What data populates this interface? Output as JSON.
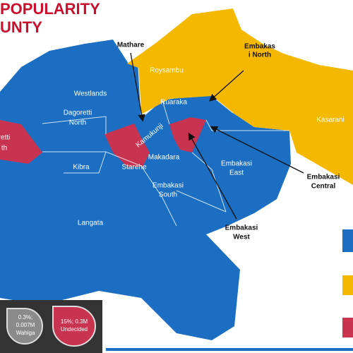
{
  "title_lines": [
    "POPULARITY",
    "UNTY"
  ],
  "regions": {
    "mathare": [
      "Mathare"
    ],
    "embakasi_north": [
      "Embakas",
      "i North"
    ],
    "roysambu": [
      "Roysambu"
    ],
    "westlands": [
      "Westlands"
    ],
    "ruaraka": [
      "Ruaraka"
    ],
    "kasarani": [
      "Kasarani"
    ],
    "dagoretti_north": [
      "Dagoretti",
      "North"
    ],
    "dagoretti_south": [
      "retti",
      "th"
    ],
    "kamukunji": [
      "Kamukunji"
    ],
    "makadara": [
      "Makadara"
    ],
    "starehe": [
      "Starehe"
    ],
    "kibra": [
      "Kibra"
    ],
    "embakasi_east": [
      "Embakasi",
      "East"
    ],
    "embakasi_central": [
      "Embakasi",
      "Central"
    ],
    "embakasi_south": [
      "Embakasi",
      "South"
    ],
    "langata": [
      "Langata"
    ],
    "embakasi_west": [
      "Embakasi",
      "West"
    ]
  },
  "badges": [
    {
      "lines": [
        "0.3%;",
        "0.007M",
        "Wahiga"
      ]
    },
    {
      "lines": [
        "15%; 0.3M",
        "Undecided"
      ]
    }
  ]
}
